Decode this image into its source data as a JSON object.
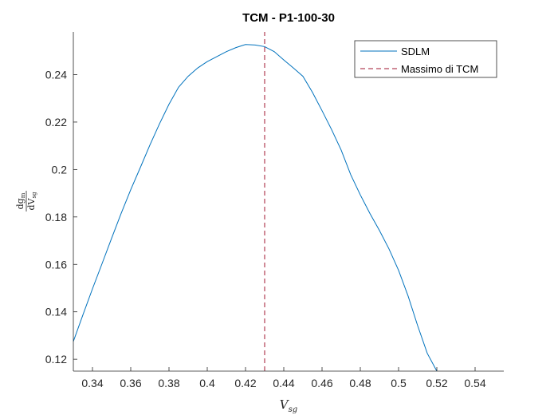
{
  "chart_data": {
    "type": "line",
    "title": "TCM - P1-100-30",
    "xlabel": "V_sg",
    "xlabel_main": "V",
    "xlabel_sub": "sg",
    "ylabel_num": "dg",
    "ylabel_num_sub": "m",
    "ylabel_den": "dV",
    "ylabel_den_sub": "sg",
    "xlim": [
      0.33,
      0.555
    ],
    "ylim": [
      0.115,
      0.258
    ],
    "xticks": [
      0.34,
      0.36,
      0.38,
      0.4,
      0.42,
      0.44,
      0.46,
      0.48,
      0.5,
      0.52,
      0.54
    ],
    "xtick_labels": [
      "0.34",
      "0.36",
      "0.38",
      "0.4",
      "0.42",
      "0.44",
      "0.46",
      "0.48",
      "0.5",
      "0.52",
      "0.54"
    ],
    "yticks": [
      0.12,
      0.14,
      0.16,
      0.18,
      0.2,
      0.22,
      0.24
    ],
    "ytick_labels": [
      "0.12",
      "0.14",
      "0.16",
      "0.18",
      "0.2",
      "0.22",
      "0.24"
    ],
    "grid": false,
    "legend_position": "top-right",
    "series": [
      {
        "name": "SDLM",
        "color": "#0072BD",
        "style": "solid",
        "x": [
          0.33,
          0.335,
          0.34,
          0.345,
          0.35,
          0.355,
          0.36,
          0.365,
          0.37,
          0.375,
          0.38,
          0.385,
          0.39,
          0.395,
          0.4,
          0.405,
          0.41,
          0.415,
          0.42,
          0.425,
          0.43,
          0.435,
          0.44,
          0.445,
          0.45,
          0.455,
          0.46,
          0.465,
          0.47,
          0.475,
          0.48,
          0.485,
          0.49,
          0.495,
          0.5,
          0.505,
          0.51,
          0.515,
          0.52,
          0.525
        ],
        "y": [
          0.1275,
          0.1387,
          0.1497,
          0.1603,
          0.171,
          0.1815,
          0.1915,
          0.2008,
          0.2103,
          0.2192,
          0.2275,
          0.2347,
          0.2393,
          0.2428,
          0.2455,
          0.2476,
          0.2497,
          0.2514,
          0.2527,
          0.2525,
          0.2518,
          0.2497,
          0.2462,
          0.2428,
          0.2393,
          0.2325,
          0.2248,
          0.2168,
          0.2082,
          0.1978,
          0.1893,
          0.1815,
          0.1743,
          0.1665,
          0.1575,
          0.1466,
          0.1341,
          0.1225,
          0.115,
          0.108
        ]
      },
      {
        "name": "Massimo di TCM",
        "color": "#A2142F",
        "style": "dashed",
        "x": [
          0.43,
          0.43
        ],
        "y": [
          0.115,
          0.258
        ]
      }
    ]
  }
}
